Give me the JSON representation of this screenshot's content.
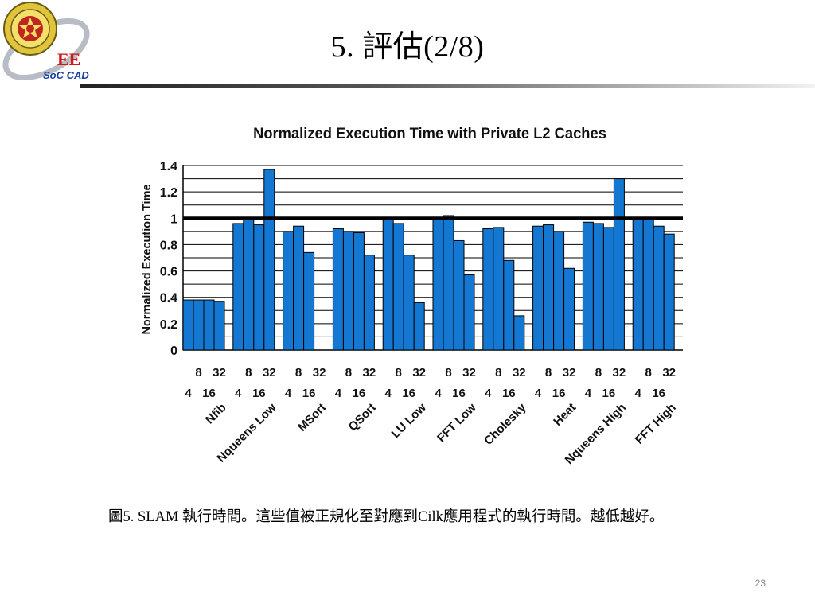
{
  "slide": {
    "title": "5. 評估(2/8)",
    "caption": "圖5. SLAM 執行時間。這些值被正規化至對應到Cilk應用程式的執行時間。越低越好。",
    "page_number": "23"
  },
  "logo": {
    "text_ee": "EE",
    "text_soc": "SoC CAD"
  },
  "colors": {
    "bar": "#1478d2",
    "bar_outline": "#000000",
    "grid": "#000000",
    "logo_red": "#d01818",
    "logo_blue": "#1a3fa0"
  },
  "chart_data": {
    "type": "bar",
    "title": "Normalized Execution Time with Private L2 Caches",
    "ylabel": "Normalized Execution Time",
    "xlabel": "",
    "ylim": [
      0,
      1.4
    ],
    "yticks": [
      "0",
      "0.2",
      "0.4",
      "0.6",
      "0.8",
      "1",
      "1.2",
      "1.4"
    ],
    "reference_line": 1,
    "grid": true,
    "processor_counts": [
      "4",
      "8",
      "16",
      "32"
    ],
    "categories": [
      "Nfib",
      "Nqueens Low",
      "MSort",
      "QSort",
      "LU Low",
      "FFT Low",
      "Cholesky",
      "Heat",
      "Nqueens High",
      "FFT High"
    ],
    "values": [
      [
        0.38,
        0.38,
        0.38,
        0.37
      ],
      [
        0.96,
        1.0,
        0.95,
        1.37
      ],
      [
        0.9,
        0.94,
        0.74,
        null
      ],
      [
        0.92,
        0.9,
        0.89,
        0.72
      ],
      [
        0.99,
        0.96,
        0.72,
        0.36
      ],
      [
        1.0,
        1.02,
        0.83,
        0.57
      ],
      [
        0.92,
        0.93,
        0.68,
        0.26
      ],
      [
        0.94,
        0.95,
        0.9,
        0.62
      ],
      [
        0.97,
        0.96,
        0.93,
        1.3
      ],
      [
        1.0,
        1.0,
        0.94,
        0.88
      ]
    ]
  }
}
